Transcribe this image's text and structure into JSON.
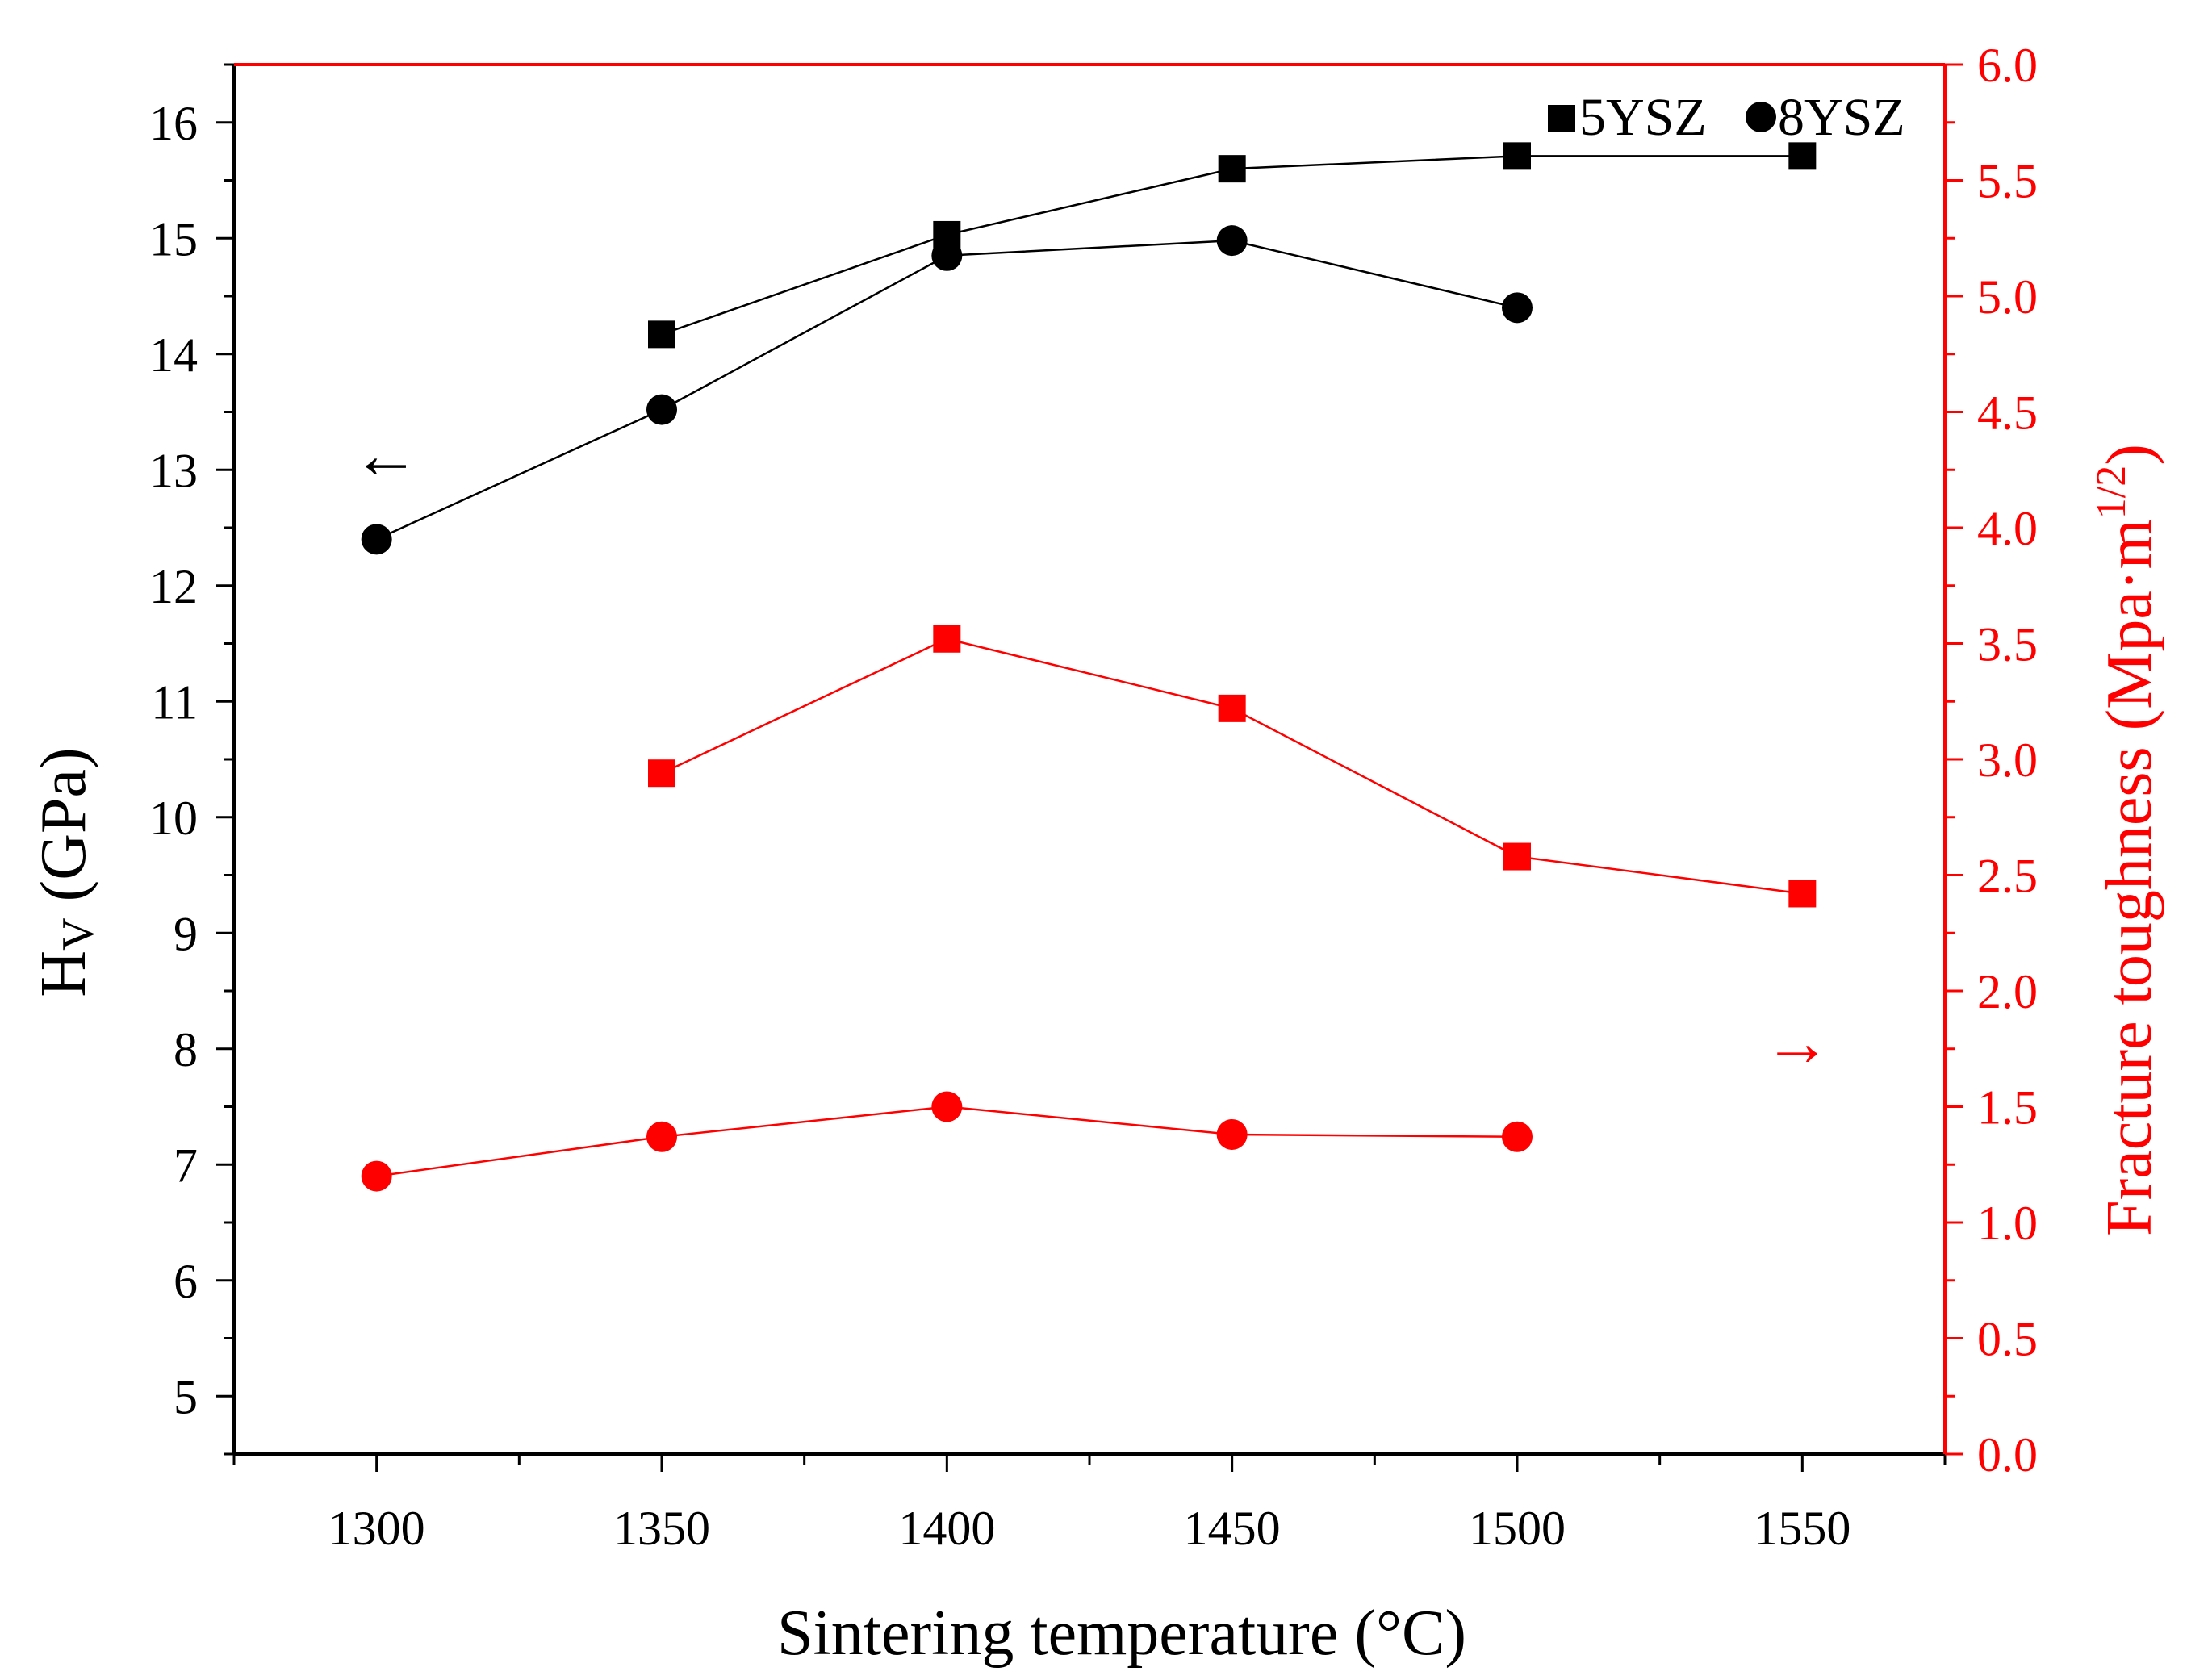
{
  "chart_data": {
    "type": "line",
    "xlabel": "Sintering temperature (°C)",
    "ylabel_left": {
      "main": "H",
      "sub": "V",
      "rest": " (GPa)"
    },
    "ylabel_right": {
      "main": "Fracture toughness (Mpa·m",
      "sup": "1/2",
      "close": ")"
    },
    "xlim": [
      1275,
      1575
    ],
    "ylim_left": [
      4.5,
      16.5
    ],
    "ylim_right": [
      0.0,
      6.0
    ],
    "x_ticks": [
      1300,
      1350,
      1400,
      1450,
      1500,
      1550
    ],
    "y_left_ticks": [
      5,
      6,
      7,
      8,
      9,
      10,
      11,
      12,
      13,
      14,
      15,
      16
    ],
    "y_right_ticks": [
      "0.0",
      "0.5",
      "1.0",
      "1.5",
      "2.0",
      "2.5",
      "3.0",
      "3.5",
      "4.0",
      "4.5",
      "5.0",
      "5.5",
      "6.0"
    ],
    "arrow_left": "←",
    "arrow_right": "→",
    "colors": {
      "left_axis": "#000000",
      "right_axis": "#ff0000"
    },
    "legend": [
      {
        "label": "5YSZ",
        "marker": "square"
      },
      {
        "label": "8YSZ",
        "marker": "circle"
      }
    ],
    "series": [
      {
        "name": "5YSZ hardness",
        "axis": "left",
        "marker": "square",
        "color": "#000000",
        "x": [
          1350,
          1400,
          1450,
          1500,
          1550
        ],
        "values": [
          14.17,
          15.03,
          15.6,
          15.71,
          15.71
        ]
      },
      {
        "name": "8YSZ hardness",
        "axis": "left",
        "marker": "circle",
        "color": "#000000",
        "x": [
          1300,
          1350,
          1400,
          1450,
          1500
        ],
        "values": [
          12.4,
          13.52,
          14.85,
          14.98,
          14.4
        ]
      },
      {
        "name": "5YSZ fracture toughness",
        "axis": "right",
        "marker": "square",
        "color": "#ff0000",
        "x": [
          1350,
          1400,
          1450,
          1500,
          1550
        ],
        "values": [
          2.94,
          3.52,
          3.22,
          2.58,
          2.42
        ]
      },
      {
        "name": "8YSZ fracture toughness",
        "axis": "right",
        "marker": "circle",
        "color": "#ff0000",
        "x": [
          1300,
          1350,
          1400,
          1450,
          1500
        ],
        "values": [
          1.2,
          1.37,
          1.5,
          1.38,
          1.37
        ]
      }
    ]
  }
}
